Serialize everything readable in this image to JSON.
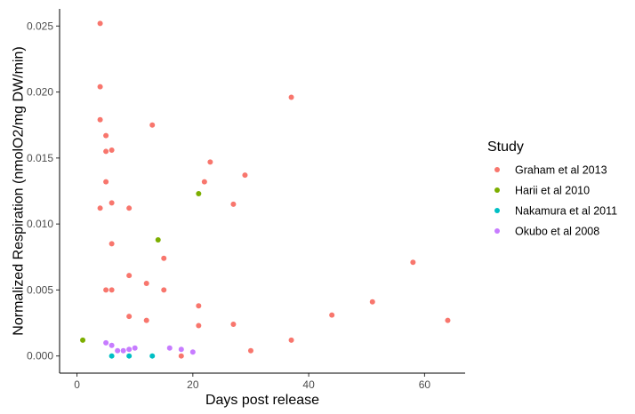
{
  "chart_data": {
    "type": "scatter",
    "title": "",
    "xlabel": "Days post release",
    "ylabel": "Normalized Respiration (nmolO2/mg DW/min)",
    "xlim": [
      -3,
      67
    ],
    "ylim": [
      -0.0013,
      0.0263
    ],
    "x_ticks": [
      0,
      20,
      40,
      60
    ],
    "x_tick_labels": [
      "0",
      "20",
      "40",
      "60"
    ],
    "y_ticks": [
      0,
      0.005,
      0.01,
      0.015,
      0.02,
      0.025
    ],
    "y_tick_labels": [
      "0.000",
      "0.005",
      "0.010",
      "0.015",
      "0.020",
      "0.025"
    ],
    "grid": false,
    "legend": {
      "title": "Study",
      "position": "right"
    },
    "series": [
      {
        "name": "Graham et al 2013",
        "color": "#F8766D",
        "points": [
          [
            4,
            0.0252
          ],
          [
            4,
            0.0204
          ],
          [
            4,
            0.0179
          ],
          [
            4,
            0.0112
          ],
          [
            5,
            0.0167
          ],
          [
            5,
            0.0155
          ],
          [
            5,
            0.0132
          ],
          [
            5,
            0.005
          ],
          [
            6,
            0.0156
          ],
          [
            6,
            0.0116
          ],
          [
            6,
            0.0085
          ],
          [
            6,
            0.005
          ],
          [
            9,
            0.0112
          ],
          [
            9,
            0.0061
          ],
          [
            9,
            0.003
          ],
          [
            12,
            0.0055
          ],
          [
            12,
            0.0027
          ],
          [
            13,
            0.0175
          ],
          [
            15,
            0.0074
          ],
          [
            15,
            0.005
          ],
          [
            18,
            0.0
          ],
          [
            21,
            0.0038
          ],
          [
            21,
            0.0023
          ],
          [
            22,
            0.0132
          ],
          [
            23,
            0.0147
          ],
          [
            27,
            0.0115
          ],
          [
            27,
            0.0024
          ],
          [
            29,
            0.0137
          ],
          [
            30,
            0.0004
          ],
          [
            37,
            0.0196
          ],
          [
            37,
            0.0012
          ],
          [
            44,
            0.0031
          ],
          [
            51,
            0.0041
          ],
          [
            58,
            0.0071
          ],
          [
            64,
            0.0027
          ]
        ]
      },
      {
        "name": "Harii et al 2010",
        "color": "#7CAE00",
        "points": [
          [
            1,
            0.0012
          ],
          [
            14,
            0.0088
          ],
          [
            21,
            0.0123
          ]
        ]
      },
      {
        "name": "Nakamura et al 2011",
        "color": "#00BFC4",
        "points": [
          [
            6,
            0.0
          ],
          [
            9,
            0.0
          ],
          [
            13,
            0.0
          ]
        ]
      },
      {
        "name": "Okubo et al 2008",
        "color": "#C77CFF",
        "points": [
          [
            5,
            0.001
          ],
          [
            6,
            0.0008
          ],
          [
            7,
            0.0004
          ],
          [
            8,
            0.0004
          ],
          [
            9,
            0.0005
          ],
          [
            10,
            0.0006
          ],
          [
            16,
            0.0006
          ],
          [
            18,
            0.0005
          ],
          [
            20,
            0.0003
          ]
        ]
      }
    ]
  }
}
